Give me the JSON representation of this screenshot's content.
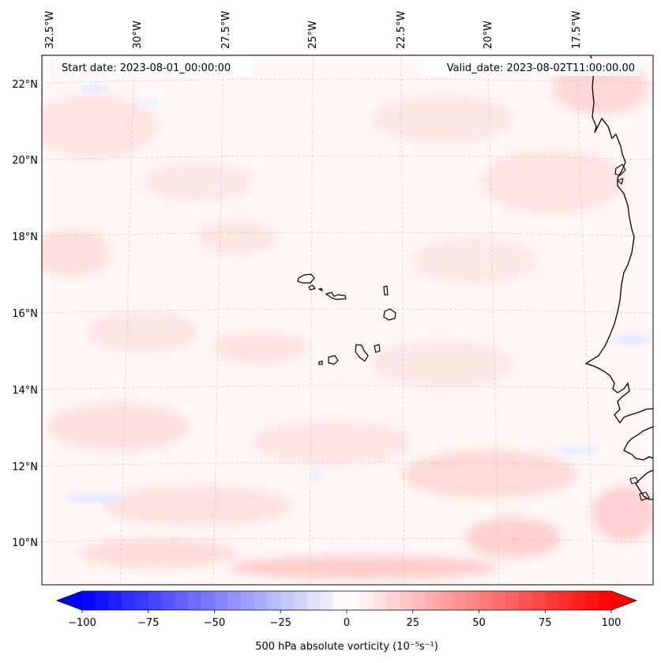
{
  "map": {
    "start_date": "Start date: 2023-08-01_00:00:00",
    "valid_date": "Valid_date: 2023-08-02T11:00:00.00",
    "lon_labels": [
      "32.5°W",
      "30°W",
      "27.5°W",
      "25°W",
      "22.5°W",
      "20°W",
      "17.5°W"
    ],
    "lat_labels": [
      "22°N",
      "20°N",
      "18°N",
      "16°N",
      "14°N",
      "12°N",
      "10°N"
    ]
  },
  "colorbar": {
    "label": "500 hPa absolute vorticity (10⁻⁵s⁻¹)",
    "min": -100,
    "max": 100,
    "ticks": [
      "−100",
      "−75",
      "−50",
      "−25",
      "0",
      "25",
      "50",
      "75",
      "100"
    ],
    "colors": {
      "neg": "#0000ff",
      "zero": "#ffffff",
      "pos": "#ff0000"
    }
  }
}
